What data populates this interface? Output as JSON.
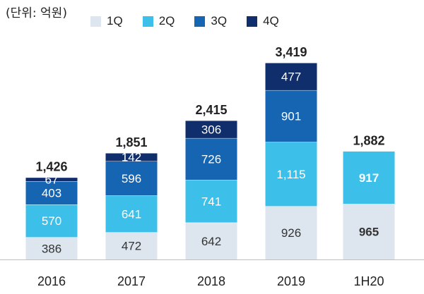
{
  "chart_data": {
    "type": "bar",
    "stacked": true,
    "unit_label": "(단위: 억원)",
    "categories": [
      "2016",
      "2017",
      "2018",
      "2019",
      "1H20"
    ],
    "series": [
      {
        "name": "1Q",
        "color": "#dde6ef",
        "label_color": "#333333",
        "values": [
          386,
          472,
          642,
          926,
          965
        ],
        "labels": [
          "386",
          "472",
          "642",
          "926",
          "965"
        ]
      },
      {
        "name": "2Q",
        "color": "#3cc0ea",
        "label_color": "#ffffff",
        "values": [
          570,
          641,
          741,
          1115,
          917
        ],
        "labels": [
          "570",
          "641",
          "741",
          "1,115",
          "917"
        ]
      },
      {
        "name": "3Q",
        "color": "#1565b3",
        "label_color": "#ffffff",
        "values": [
          403,
          596,
          726,
          901,
          null
        ],
        "labels": [
          "403",
          "596",
          "726",
          "901",
          null
        ]
      },
      {
        "name": "4Q",
        "color": "#102d6c",
        "label_color": "#ffffff",
        "values": [
          67,
          142,
          306,
          477,
          null
        ],
        "labels": [
          "67",
          "142",
          "306",
          "477",
          null
        ]
      }
    ],
    "totals": [
      1426,
      1851,
      2415,
      3419,
      1882
    ],
    "total_labels": [
      "1,426",
      "1,851",
      "2,415",
      "3,419",
      "1,882"
    ],
    "bold_labels_category": "1H20",
    "ylim": [
      0,
      3600
    ],
    "grid": false,
    "legend_position": "top"
  }
}
